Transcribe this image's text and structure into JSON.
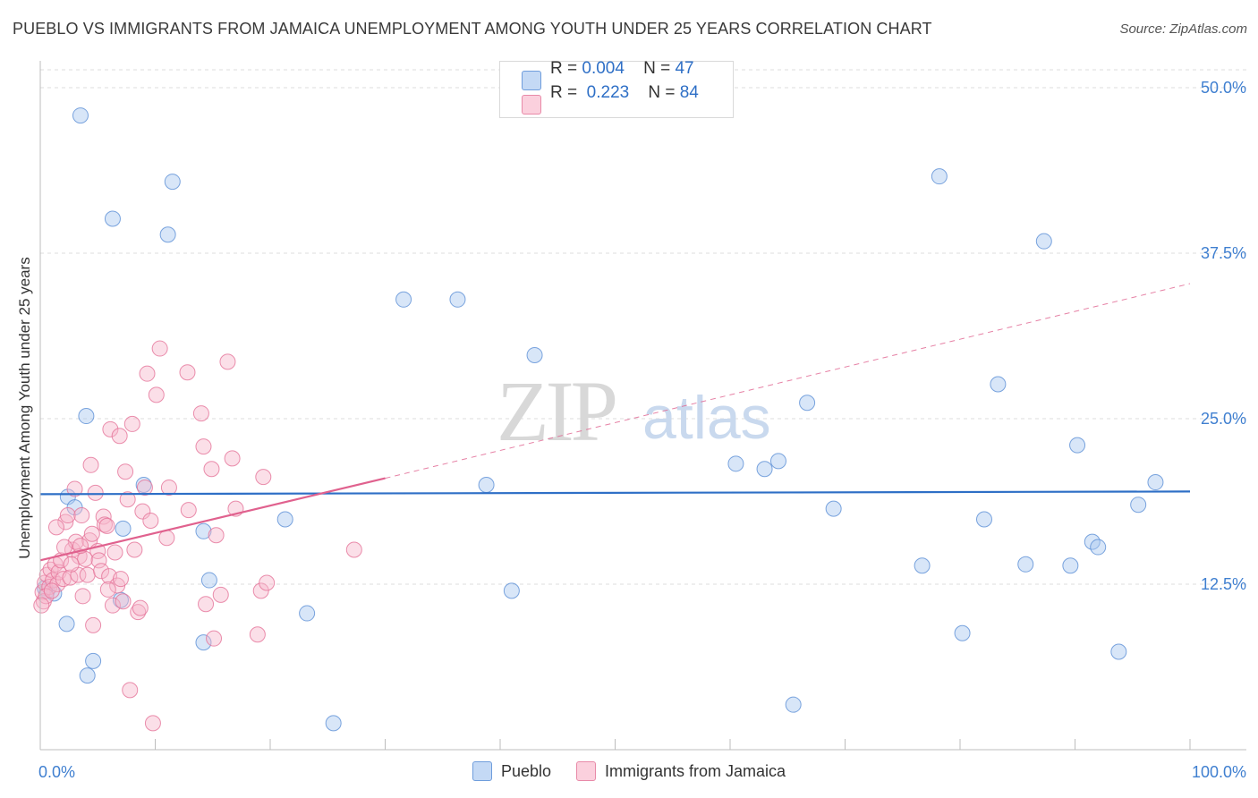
{
  "title": "PUEBLO VS IMMIGRANTS FROM JAMAICA UNEMPLOYMENT AMONG YOUTH UNDER 25 YEARS CORRELATION CHART",
  "source": "Source: ZipAtlas.com",
  "watermark": "ZIPatlas",
  "legend_box": {
    "rows": [
      {
        "r_label": "R =",
        "r_value": "0.004",
        "n_label": "N =",
        "n_value": "47",
        "color": "#a9c8f0"
      },
      {
        "r_label": "R =",
        "r_value": "0.223",
        "n_label": "N =",
        "n_value": "84",
        "color": "#f6b8cb"
      }
    ]
  },
  "chart_data": {
    "type": "scatter",
    "xlabel": "",
    "ylabel": "Unemployment Among Youth under 25 years",
    "xlim": [
      0,
      100
    ],
    "ylim": [
      0,
      50
    ],
    "x_tick_labels": [
      "0.0%",
      "100.0%"
    ],
    "y_ticks": [
      12.5,
      25.0,
      37.5,
      50.0
    ],
    "y_tick_labels": [
      "12.5%",
      "25.0%",
      "37.5%",
      "50.0%"
    ],
    "grid": "horizontal dashed",
    "legend_position": "bottom-center",
    "series": [
      {
        "name": "Pueblo",
        "color": "#a9c8f0",
        "edge": "#5b8fd6",
        "trend": {
          "type": "solid",
          "x": [
            0,
            100
          ],
          "y": [
            19.3,
            19.5
          ],
          "color": "#2e6fc6"
        },
        "points": [
          [
            3.5,
            47.9
          ],
          [
            11.5,
            42.9
          ],
          [
            6.3,
            40.1
          ],
          [
            11.1,
            38.9
          ],
          [
            0.6,
            12.0
          ],
          [
            1.2,
            11.8
          ],
          [
            2.3,
            9.5
          ],
          [
            4.1,
            5.6
          ],
          [
            4.6,
            6.7
          ],
          [
            2.4,
            19.1
          ],
          [
            3.0,
            18.3
          ],
          [
            4.0,
            25.2
          ],
          [
            9.0,
            20.0
          ],
          [
            7.2,
            16.7
          ],
          [
            7.0,
            11.3
          ],
          [
            14.2,
            16.5
          ],
          [
            14.7,
            12.8
          ],
          [
            14.2,
            8.1
          ],
          [
            21.3,
            17.4
          ],
          [
            23.2,
            10.3
          ],
          [
            25.5,
            2.0
          ],
          [
            31.6,
            34.0
          ],
          [
            36.3,
            34.0
          ],
          [
            38.8,
            20.0
          ],
          [
            41.0,
            12.0
          ],
          [
            43.0,
            29.8
          ],
          [
            60.5,
            21.6
          ],
          [
            63.0,
            21.2
          ],
          [
            64.2,
            21.8
          ],
          [
            65.5,
            3.4
          ],
          [
            66.7,
            26.2
          ],
          [
            69.0,
            18.2
          ],
          [
            76.7,
            13.9
          ],
          [
            78.2,
            43.3
          ],
          [
            80.2,
            8.8
          ],
          [
            82.1,
            17.4
          ],
          [
            83.3,
            27.6
          ],
          [
            85.7,
            14.0
          ],
          [
            87.3,
            38.4
          ],
          [
            89.6,
            13.9
          ],
          [
            90.2,
            23.0
          ],
          [
            91.5,
            15.7
          ],
          [
            92.0,
            15.3
          ],
          [
            93.8,
            7.4
          ],
          [
            95.5,
            18.5
          ],
          [
            97.0,
            20.2
          ],
          [
            0.4,
            12.2
          ]
        ]
      },
      {
        "name": "Immigrants from Jamaica",
        "color": "#f6b8cb",
        "edge": "#e57399",
        "trend": {
          "type": "solid",
          "x": [
            0,
            30
          ],
          "y": [
            14.3,
            20.5
          ],
          "color": "#e0618e",
          "extension": {
            "type": "dashed",
            "x": [
              30,
              100
            ],
            "y": [
              20.5,
              35.2
            ]
          }
        },
        "points": [
          [
            0.2,
            11.9
          ],
          [
            0.4,
            12.6
          ],
          [
            0.6,
            13.2
          ],
          [
            0.8,
            12.3
          ],
          [
            0.9,
            13.6
          ],
          [
            1.1,
            12.8
          ],
          [
            1.3,
            14.0
          ],
          [
            1.5,
            12.5
          ],
          [
            1.6,
            13.4
          ],
          [
            1.8,
            14.3
          ],
          [
            2.0,
            12.9
          ],
          [
            2.2,
            17.2
          ],
          [
            2.4,
            17.7
          ],
          [
            2.6,
            13.0
          ],
          [
            2.8,
            15.1
          ],
          [
            3.0,
            19.7
          ],
          [
            3.1,
            15.7
          ],
          [
            3.3,
            13.2
          ],
          [
            3.4,
            14.6
          ],
          [
            3.6,
            17.7
          ],
          [
            3.7,
            11.6
          ],
          [
            3.9,
            14.4
          ],
          [
            4.1,
            13.2
          ],
          [
            4.3,
            15.8
          ],
          [
            4.4,
            21.5
          ],
          [
            4.5,
            16.3
          ],
          [
            4.6,
            9.4
          ],
          [
            4.8,
            19.4
          ],
          [
            5.0,
            15.0
          ],
          [
            5.1,
            14.3
          ],
          [
            5.3,
            13.5
          ],
          [
            5.5,
            17.6
          ],
          [
            5.6,
            17.0
          ],
          [
            5.8,
            16.9
          ],
          [
            6.0,
            13.1
          ],
          [
            6.1,
            24.2
          ],
          [
            6.3,
            10.9
          ],
          [
            6.5,
            14.9
          ],
          [
            6.7,
            12.4
          ],
          [
            6.9,
            23.7
          ],
          [
            7.0,
            12.9
          ],
          [
            7.2,
            11.2
          ],
          [
            7.4,
            21.0
          ],
          [
            7.6,
            18.9
          ],
          [
            7.8,
            4.5
          ],
          [
            8.0,
            24.6
          ],
          [
            8.2,
            15.1
          ],
          [
            8.5,
            10.4
          ],
          [
            8.7,
            10.7
          ],
          [
            8.9,
            18.0
          ],
          [
            9.1,
            19.8
          ],
          [
            9.3,
            28.4
          ],
          [
            9.6,
            17.3
          ],
          [
            9.8,
            2.0
          ],
          [
            10.1,
            26.8
          ],
          [
            10.4,
            30.3
          ],
          [
            11.0,
            16.0
          ],
          [
            11.2,
            19.8
          ],
          [
            12.8,
            28.5
          ],
          [
            12.9,
            18.1
          ],
          [
            14.0,
            25.4
          ],
          [
            14.2,
            22.9
          ],
          [
            14.4,
            11.0
          ],
          [
            14.9,
            21.2
          ],
          [
            15.1,
            8.4
          ],
          [
            15.3,
            16.2
          ],
          [
            15.7,
            11.7
          ],
          [
            16.3,
            29.3
          ],
          [
            16.7,
            22.0
          ],
          [
            17.0,
            18.2
          ],
          [
            18.9,
            8.7
          ],
          [
            19.2,
            12.0
          ],
          [
            19.4,
            20.6
          ],
          [
            19.7,
            12.6
          ],
          [
            27.3,
            15.1
          ],
          [
            0.3,
            11.2
          ],
          [
            0.5,
            11.6
          ],
          [
            1.0,
            12.0
          ],
          [
            1.4,
            16.8
          ],
          [
            2.1,
            15.3
          ],
          [
            2.7,
            14.0
          ],
          [
            3.5,
            15.4
          ],
          [
            5.9,
            12.1
          ],
          [
            0.1,
            10.9
          ]
        ]
      }
    ]
  }
}
